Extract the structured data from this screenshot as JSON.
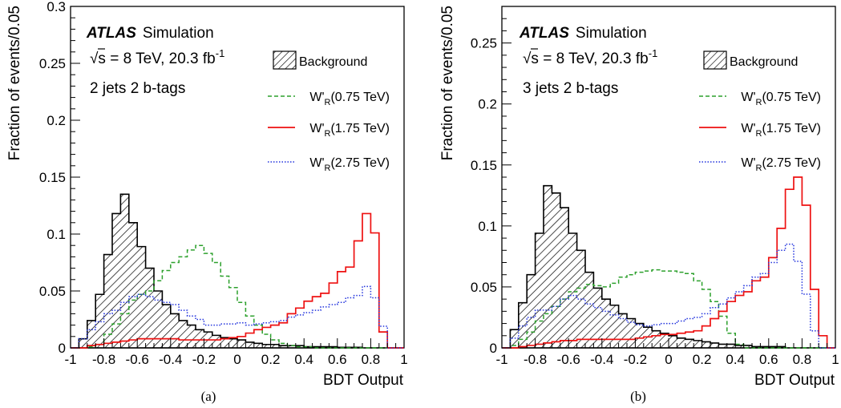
{
  "colors": {
    "background_line": "#000000",
    "w075": "#2ca02c",
    "w175": "#ee1111",
    "w275": "#2233dd"
  },
  "chart_data": [
    {
      "type": "step-histogram",
      "panel_caption": "(a)",
      "experiment": "ATLAS",
      "experiment_suffix": "Simulation",
      "energy_label": "√s = 8 TeV, 20.3 fb",
      "energy_exponent": "-1",
      "category_label": "2 jets 2 b-tags",
      "xlabel": "BDT Output",
      "ylabel": "Fraction of events/0.05",
      "xlim": [
        -1,
        1
      ],
      "ylim": [
        0,
        0.3
      ],
      "xticks": [
        "-1",
        "-0.8",
        "-0.6",
        "-0.4",
        "-0.2",
        "0",
        "0.2",
        "0.4",
        "0.6",
        "0.8",
        "1"
      ],
      "yticks": [
        "0",
        "0.05",
        "0.1",
        "0.15",
        "0.2",
        "0.25",
        "0.3"
      ],
      "bin_edges": [
        -1,
        -0.95,
        -0.9,
        -0.85,
        -0.8,
        -0.75,
        -0.7,
        -0.65,
        -0.6,
        -0.55,
        -0.5,
        -0.45,
        -0.4,
        -0.35,
        -0.3,
        -0.25,
        -0.2,
        -0.15,
        -0.1,
        -0.05,
        0,
        0.05,
        0.1,
        0.15,
        0.2,
        0.25,
        0.3,
        0.35,
        0.4,
        0.45,
        0.5,
        0.55,
        0.6,
        0.65,
        0.7,
        0.75,
        0.8,
        0.85,
        0.9,
        0.95,
        1
      ],
      "legend": [
        {
          "label": "Background",
          "series": "Background"
        },
        {
          "label_pre": "W'",
          "label_sub": "R",
          "label_post": "(0.75 TeV)",
          "series": "W'R(0.75 TeV)"
        },
        {
          "label_pre": "W'",
          "label_sub": "R",
          "label_post": "(1.75 TeV)",
          "series": "W'R(1.75 TeV)"
        },
        {
          "label_pre": "W'",
          "label_sub": "R",
          "label_post": "(2.75 TeV)",
          "series": "W'R(2.75 TeV)"
        }
      ],
      "series": [
        {
          "name": "Background",
          "style": "hatched",
          "values": [
            0.0,
            0.008,
            0.024,
            0.047,
            0.082,
            0.118,
            0.135,
            0.11,
            0.089,
            0.07,
            0.05,
            0.038,
            0.03,
            0.024,
            0.02,
            0.016,
            0.014,
            0.011,
            0.009,
            0.008,
            0.007,
            0.005,
            0.004,
            0.003,
            0.003,
            0.002,
            0.002,
            0.002,
            0.001,
            0.001,
            0.001,
            0.001,
            0.0005,
            0.0005,
            0.0005,
            0.0,
            0.0,
            0.0,
            0.0,
            0.0
          ]
        },
        {
          "name": "W'R(0.75 TeV)",
          "style": "dashed",
          "values": [
            0.0,
            0.0,
            0.001,
            0.003,
            0.012,
            0.021,
            0.03,
            0.042,
            0.047,
            0.05,
            0.059,
            0.068,
            0.075,
            0.08,
            0.086,
            0.09,
            0.083,
            0.075,
            0.063,
            0.053,
            0.04,
            0.028,
            0.02,
            0.012,
            0.007,
            0.004,
            0.002,
            0.001,
            0.001,
            0.0,
            0.0,
            0.0,
            0.0,
            0.0,
            0.0,
            0.0,
            0.0,
            0.0,
            0.0,
            0.0
          ]
        },
        {
          "name": "W'R(1.75 TeV)",
          "style": "solid",
          "values": [
            0.0,
            0.0,
            0.002,
            0.003,
            0.004,
            0.005,
            0.006,
            0.007,
            0.008,
            0.008,
            0.008,
            0.008,
            0.008,
            0.007,
            0.007,
            0.007,
            0.007,
            0.007,
            0.008,
            0.009,
            0.01,
            0.013,
            0.016,
            0.018,
            0.02,
            0.022,
            0.03,
            0.035,
            0.041,
            0.045,
            0.048,
            0.057,
            0.067,
            0.071,
            0.094,
            0.118,
            0.101,
            0.014,
            0.0,
            0.0
          ]
        },
        {
          "name": "W'R(2.75 TeV)",
          "style": "dotted",
          "values": [
            0.0,
            0.008,
            0.016,
            0.023,
            0.03,
            0.033,
            0.04,
            0.045,
            0.047,
            0.045,
            0.042,
            0.04,
            0.038,
            0.033,
            0.028,
            0.025,
            0.02,
            0.02,
            0.021,
            0.021,
            0.022,
            0.02,
            0.021,
            0.022,
            0.023,
            0.024,
            0.027,
            0.029,
            0.031,
            0.033,
            0.036,
            0.038,
            0.04,
            0.044,
            0.046,
            0.054,
            0.044,
            0.019,
            0.0,
            0.0
          ]
        }
      ]
    },
    {
      "type": "step-histogram",
      "panel_caption": "(b)",
      "experiment": "ATLAS",
      "experiment_suffix": "Simulation",
      "energy_label": "√s = 8 TeV, 20.3 fb",
      "energy_exponent": "-1",
      "category_label": "3 jets 2 b-tags",
      "xlabel": "BDT Output",
      "ylabel": "Fraction of events/0.05",
      "xlim": [
        -1,
        1
      ],
      "ylim": [
        0,
        0.28
      ],
      "xticks": [
        "-1",
        "-0.8",
        "-0.6",
        "-0.4",
        "-0.2",
        "0",
        "0.2",
        "0.4",
        "0.6",
        "0.8",
        "1"
      ],
      "yticks": [
        "0",
        "0.05",
        "0.1",
        "0.15",
        "0.2",
        "0.25"
      ],
      "bin_edges": [
        -1,
        -0.95,
        -0.9,
        -0.85,
        -0.8,
        -0.75,
        -0.7,
        -0.65,
        -0.6,
        -0.55,
        -0.5,
        -0.45,
        -0.4,
        -0.35,
        -0.3,
        -0.25,
        -0.2,
        -0.15,
        -0.1,
        -0.05,
        0,
        0.05,
        0.1,
        0.15,
        0.2,
        0.25,
        0.3,
        0.35,
        0.4,
        0.45,
        0.5,
        0.55,
        0.6,
        0.65,
        0.7,
        0.75,
        0.8,
        0.85,
        0.9,
        0.95,
        1
      ],
      "legend": [
        {
          "label": "Background",
          "series": "Background"
        },
        {
          "label_pre": "W'",
          "label_sub": "R",
          "label_post": "(0.75 TeV)",
          "series": "W'R(0.75 TeV)"
        },
        {
          "label_pre": "W'",
          "label_sub": "R",
          "label_post": "(1.75 TeV)",
          "series": "W'R(1.75 TeV)"
        },
        {
          "label_pre": "W'",
          "label_sub": "R",
          "label_post": "(2.75 TeV)",
          "series": "W'R(2.75 TeV)"
        }
      ],
      "series": [
        {
          "name": "Background",
          "style": "hatched",
          "values": [
            0.0,
            0.015,
            0.037,
            0.06,
            0.094,
            0.133,
            0.127,
            0.115,
            0.094,
            0.08,
            0.062,
            0.049,
            0.04,
            0.035,
            0.028,
            0.024,
            0.02,
            0.017,
            0.014,
            0.012,
            0.01,
            0.008,
            0.007,
            0.006,
            0.005,
            0.004,
            0.003,
            0.003,
            0.002,
            0.002,
            0.001,
            0.001,
            0.001,
            0.001,
            0.0,
            0.0,
            0.0,
            0.0,
            0.0,
            0.0
          ]
        },
        {
          "name": "W'R(0.75 TeV)",
          "style": "dashed",
          "values": [
            0.0,
            0.002,
            0.007,
            0.013,
            0.022,
            0.028,
            0.034,
            0.04,
            0.046,
            0.049,
            0.052,
            0.051,
            0.05,
            0.053,
            0.058,
            0.06,
            0.062,
            0.063,
            0.064,
            0.063,
            0.063,
            0.062,
            0.061,
            0.055,
            0.048,
            0.038,
            0.026,
            0.012,
            0.003,
            0.0,
            0.0,
            0.0,
            0.0,
            0.0,
            0.0,
            0.0,
            0.0,
            0.0,
            0.0,
            0.0
          ]
        },
        {
          "name": "W'R(1.75 TeV)",
          "style": "solid",
          "values": [
            0.0,
            0.0,
            0.001,
            0.002,
            0.003,
            0.004,
            0.005,
            0.006,
            0.006,
            0.007,
            0.007,
            0.007,
            0.007,
            0.007,
            0.007,
            0.007,
            0.008,
            0.009,
            0.01,
            0.011,
            0.011,
            0.012,
            0.013,
            0.014,
            0.018,
            0.024,
            0.03,
            0.038,
            0.043,
            0.046,
            0.055,
            0.058,
            0.074,
            0.098,
            0.13,
            0.14,
            0.117,
            0.048,
            0.01,
            0.0
          ]
        },
        {
          "name": "W'R(2.75 TeV)",
          "style": "dotted",
          "values": [
            0.0,
            0.008,
            0.018,
            0.025,
            0.031,
            0.031,
            0.034,
            0.04,
            0.043,
            0.04,
            0.036,
            0.033,
            0.03,
            0.027,
            0.024,
            0.021,
            0.019,
            0.018,
            0.019,
            0.02,
            0.02,
            0.022,
            0.024,
            0.025,
            0.028,
            0.033,
            0.036,
            0.041,
            0.046,
            0.051,
            0.058,
            0.061,
            0.07,
            0.08,
            0.085,
            0.071,
            0.044,
            0.014,
            0.0,
            0.0
          ]
        }
      ]
    }
  ]
}
